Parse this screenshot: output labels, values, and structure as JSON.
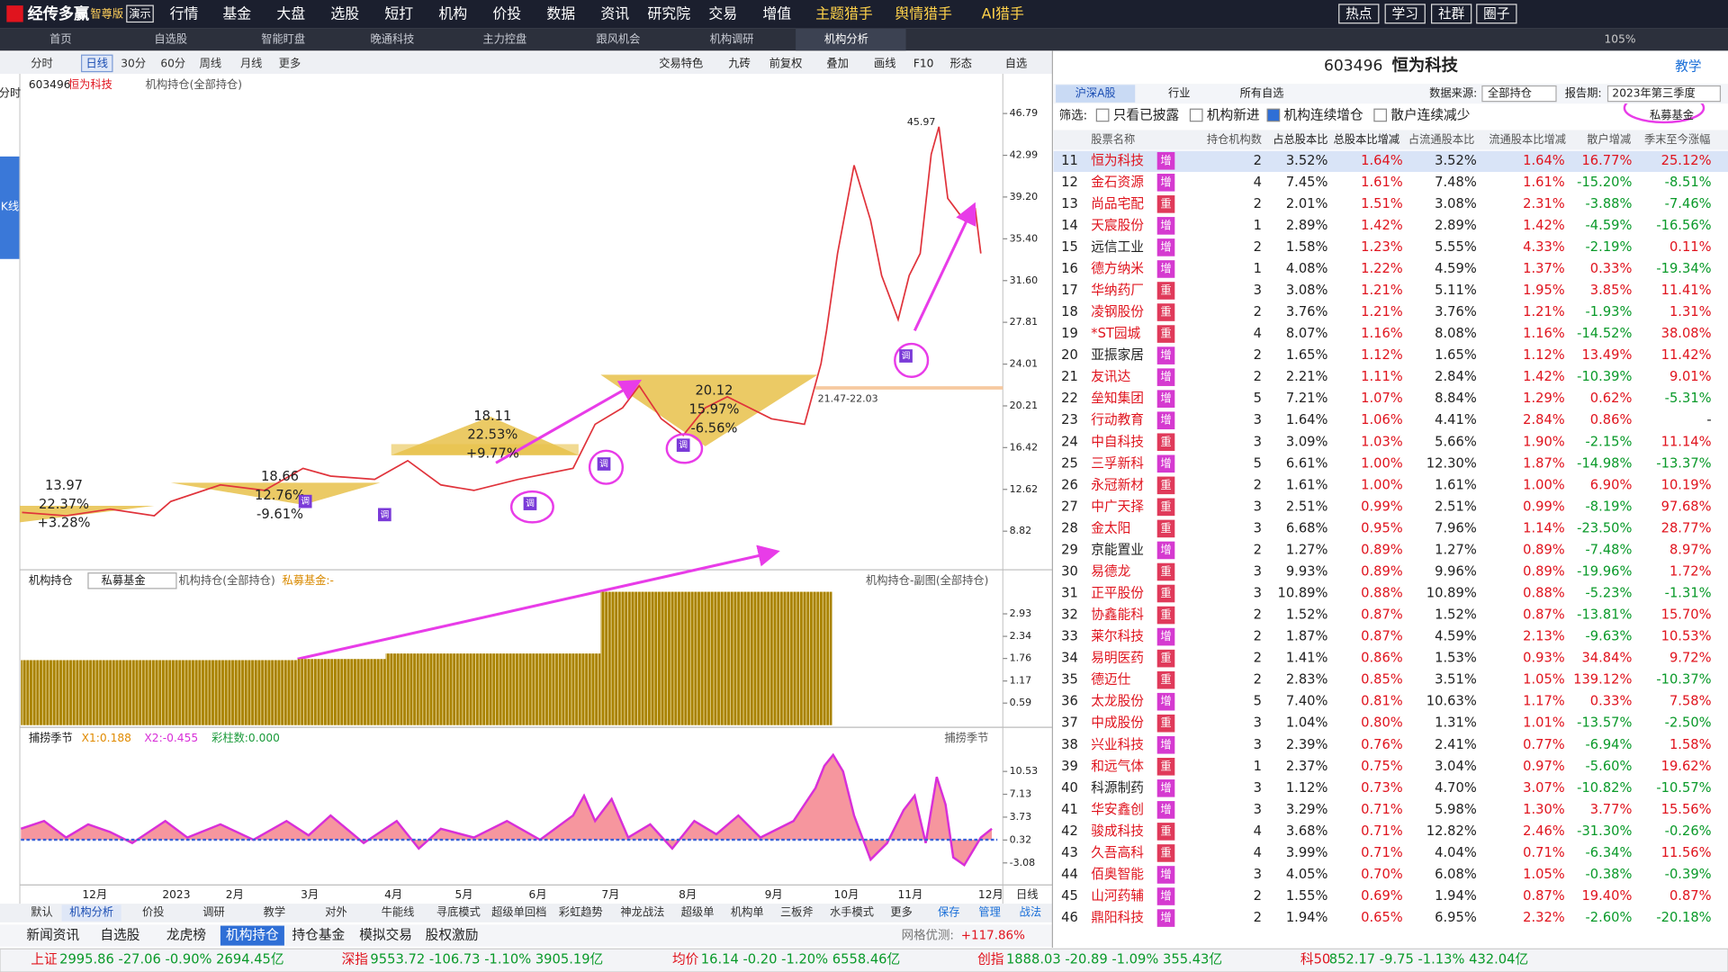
{
  "top_bar": {
    "logo": "经传多赢",
    "edition": "智尊版",
    "demo": "演示",
    "menu": [
      "行情",
      "基金",
      "大盘",
      "选股",
      "短打",
      "机构",
      "价投",
      "数据",
      "资讯",
      "研究院",
      "交易",
      "增值",
      "主题猎手",
      "舆情猎手",
      "AI猎手"
    ],
    "buttons": [
      "热点",
      "学习",
      "社群",
      "圈子"
    ]
  },
  "tabs": {
    "items": [
      "首页",
      "自选股",
      "智能盯盘",
      "晚通科技",
      "主力控盘",
      "跟风机会",
      "机构调研",
      "机构分析"
    ],
    "zoom": "105%"
  },
  "side_tabs": [
    "分时",
    "K线"
  ],
  "toolbar": {
    "periods": [
      "分时",
      "日线",
      "30分",
      "60分",
      "周线",
      "月线",
      "更多"
    ],
    "tools": [
      "交易特色",
      "九砖",
      "前复权",
      "叠加",
      "画线",
      "F10",
      "形态",
      "自选"
    ]
  },
  "main_chart": {
    "code": "603496",
    "name": "恒为科技",
    "indicator": "机构持仓(全部持仓)",
    "price_ticks": [
      46.79,
      42.99,
      {
        "value": 39.2,
        "label": "39.20"
      },
      {
        "value": 35.4,
        "label": "35.40"
      },
      {
        "value": 31.6,
        "label": "31.60"
      },
      27.81,
      24.01,
      20.21,
      16.42,
      12.62,
      8.82
    ],
    "high_label": "45.97",
    "range_label": "21.47-22.03",
    "zones": [
      [
        "13.97",
        "22.37%",
        "+3.28%"
      ],
      [
        "18.66",
        "12.76%",
        "-9.61%"
      ],
      [
        "18.11",
        "22.53%",
        "+9.77%"
      ],
      [
        "20.12",
        "15.97%",
        "-6.56%"
      ]
    ],
    "marker": "调"
  },
  "holding_chart": {
    "title": "机构持仓",
    "selector": "私募基金",
    "indicator": "机构持仓(全部持仓)",
    "legend": "私募基金:-",
    "right_title": "机构持仓-副图(全部持仓)",
    "ticks": [
      2.93,
      2.34,
      1.76,
      1.17,
      0.59
    ]
  },
  "season_chart": {
    "title": "捕捞季节",
    "x1": "X1:0.188",
    "x2": "X2:-0.455",
    "bars": "彩柱数:0.000",
    "ticks": [
      10.53,
      7.13,
      3.73,
      0.32,
      -3.08
    ]
  },
  "months": [
    "12月",
    "2023",
    "2月",
    "3月",
    "4月",
    "5月",
    "6月",
    "7月",
    "8月",
    "9月",
    "10月",
    "11月",
    "12月"
  ],
  "period_label": "日线",
  "template_tabs": [
    "默认",
    "机构分析",
    "价投",
    "调研",
    "教学",
    "对外",
    "牛能线",
    "寻底模式",
    "超级单回档",
    "彩虹趋势",
    "神龙战法",
    "超级单",
    "机构单",
    "三板斧",
    "水手模式",
    "更多",
    "保存",
    "管理",
    "战法"
  ],
  "info_tabs": [
    "新闻资讯",
    "自选股",
    "龙虎榜",
    "机构持仓",
    "持仓基金",
    "模拟交易",
    "股权激励"
  ],
  "grid_test": {
    "label": "网格优测:",
    "value": "+117.86%"
  },
  "status": [
    {
      "name": "上证",
      "values": "2995.86  -27.06  -0.90%  2694.45亿"
    },
    {
      "name": "深指",
      "values": "9553.72  -106.73  -1.10%  3905.19亿"
    },
    {
      "name": "均价",
      "values": "16.14  -0.20  -1.20%  6558.46亿"
    },
    {
      "name": "创指",
      "values": "1888.03  -20.89  -1.09%  355.43亿"
    },
    {
      "name": "科50",
      "values": "852.17  -9.75  -1.13%  432.04亿"
    }
  ],
  "panel": {
    "code": "603496",
    "name": "恒为科技",
    "help": "教学",
    "market_tabs": [
      "沪深A股",
      "行业",
      "所有自选"
    ],
    "source_label": "数据来源:",
    "source": "全部持仓",
    "period_label": "报告期:",
    "period": "2023年第三季度",
    "filter_label": "筛选:",
    "filters": [
      {
        "label": "只看已披露",
        "checked": false
      },
      {
        "label": "机构新进",
        "checked": false
      },
      {
        "label": "机构连续增仓",
        "checked": true
      },
      {
        "label": "散户连续减少",
        "checked": false
      }
    ],
    "fund_type": "私募基金",
    "columns": [
      "股票名称",
      "持仓机构数",
      "占总股本比",
      "总股本比增减",
      "占流通股本比",
      "流通股本比增减",
      "散户增减",
      "季末至今涨幅"
    ],
    "rows": [
      {
        "no": "11",
        "name": "恒为科技",
        "name_color": "#e0141e",
        "tag": "增",
        "cells": [
          "2",
          "3.52%",
          "1.64%",
          "3.52%",
          "1.64%",
          "16.77%",
          "25.12%"
        ]
      },
      {
        "no": "12",
        "name": "金石资源",
        "name_color": "#e0141e",
        "tag": "增",
        "cells": [
          "4",
          "7.45%",
          "1.61%",
          "7.48%",
          "1.61%",
          "-15.20%",
          "-8.51%"
        ]
      },
      {
        "no": "13",
        "name": "尚品宅配",
        "name_color": "#e0141e",
        "tag": "重",
        "cells": [
          "2",
          "2.01%",
          "1.51%",
          "3.08%",
          "2.31%",
          "-3.88%",
          "-7.46%"
        ]
      },
      {
        "no": "14",
        "name": "天宸股份",
        "name_color": "#e0141e",
        "tag": "增",
        "cells": [
          "1",
          "2.89%",
          "1.42%",
          "2.89%",
          "1.42%",
          "-4.59%",
          "-16.56%"
        ]
      },
      {
        "no": "15",
        "name": "远信工业",
        "name_color": "#222222",
        "tag": "增",
        "cells": [
          "2",
          "1.58%",
          "1.23%",
          "5.55%",
          "4.33%",
          "-2.19%",
          "0.11%"
        ]
      },
      {
        "no": "16",
        "name": "德方纳米",
        "name_color": "#e0141e",
        "tag": "增",
        "cells": [
          "1",
          "4.08%",
          "1.22%",
          "4.59%",
          "1.37%",
          "0.33%",
          "-19.34%"
        ]
      },
      {
        "no": "17",
        "name": "华纳药厂",
        "name_color": "#e0141e",
        "tag": "重",
        "cells": [
          "3",
          "3.08%",
          "1.21%",
          "5.11%",
          "1.95%",
          "3.85%",
          "11.41%"
        ]
      },
      {
        "no": "18",
        "name": "凌钢股份",
        "name_color": "#e0141e",
        "tag": "重",
        "cells": [
          "2",
          "3.76%",
          "1.21%",
          "3.76%",
          "1.21%",
          "-1.93%",
          "1.31%"
        ]
      },
      {
        "no": "19",
        "name": "*ST园城",
        "name_color": "#e0141e",
        "tag": "重",
        "cells": [
          "4",
          "8.07%",
          "1.16%",
          "8.08%",
          "1.16%",
          "-14.52%",
          "38.08%"
        ]
      },
      {
        "no": "20",
        "name": "亚振家居",
        "name_color": "#222222",
        "tag": "增",
        "cells": [
          "2",
          "1.65%",
          "1.12%",
          "1.65%",
          "1.12%",
          "13.49%",
          "11.42%"
        ]
      },
      {
        "no": "21",
        "name": "友讯达",
        "name_color": "#e0141e",
        "tag": "增",
        "cells": [
          "2",
          "2.21%",
          "1.11%",
          "2.84%",
          "1.42%",
          "-10.39%",
          "9.01%"
        ]
      },
      {
        "no": "22",
        "name": "垒知集团",
        "name_color": "#e0141e",
        "tag": "增",
        "cells": [
          "5",
          "7.21%",
          "1.07%",
          "8.84%",
          "1.29%",
          "0.62%",
          "-5.31%"
        ]
      },
      {
        "no": "23",
        "name": "行动教育",
        "name_color": "#e0141e",
        "tag": "增",
        "cells": [
          "3",
          "1.64%",
          "1.06%",
          "4.41%",
          "2.84%",
          "0.86%",
          "-"
        ]
      },
      {
        "no": "24",
        "name": "中自科技",
        "name_color": "#e0141e",
        "tag": "重",
        "cells": [
          "3",
          "3.09%",
          "1.03%",
          "5.66%",
          "1.90%",
          "-2.15%",
          "11.14%"
        ]
      },
      {
        "no": "25",
        "name": "三孚新科",
        "name_color": "#e0141e",
        "tag": "增",
        "cells": [
          "5",
          "6.61%",
          "1.00%",
          "12.30%",
          "1.87%",
          "-14.98%",
          "-13.37%"
        ]
      },
      {
        "no": "26",
        "name": "永冠新材",
        "name_color": "#e0141e",
        "tag": "重",
        "cells": [
          "2",
          "1.61%",
          "1.00%",
          "1.61%",
          "1.00%",
          "6.90%",
          "10.19%"
        ]
      },
      {
        "no": "27",
        "name": "中广天择",
        "name_color": "#e0141e",
        "tag": "重",
        "cells": [
          "3",
          "2.51%",
          "0.99%",
          "2.51%",
          "0.99%",
          "-8.19%",
          "97.68%"
        ]
      },
      {
        "no": "28",
        "name": "金太阳",
        "name_color": "#e0141e",
        "tag": "重",
        "cells": [
          "3",
          "6.68%",
          "0.95%",
          "7.96%",
          "1.14%",
          "-23.50%",
          "28.77%"
        ]
      },
      {
        "no": "29",
        "name": "京能置业",
        "name_color": "#222222",
        "tag": "增",
        "cells": [
          "2",
          "1.27%",
          "0.89%",
          "1.27%",
          "0.89%",
          "-7.48%",
          "8.97%"
        ]
      },
      {
        "no": "30",
        "name": "易德龙",
        "name_color": "#e0141e",
        "tag": "重",
        "cells": [
          "3",
          "9.93%",
          "0.89%",
          "9.96%",
          "0.89%",
          "-19.96%",
          "1.72%"
        ]
      },
      {
        "no": "31",
        "name": "正平股份",
        "name_color": "#e0141e",
        "tag": "重",
        "cells": [
          "3",
          "10.89%",
          "0.88%",
          "10.89%",
          "0.88%",
          "-5.23%",
          "-1.31%"
        ]
      },
      {
        "no": "32",
        "name": "协鑫能科",
        "name_color": "#e0141e",
        "tag": "重",
        "cells": [
          "2",
          "1.52%",
          "0.87%",
          "1.52%",
          "0.87%",
          "-13.81%",
          "15.70%"
        ]
      },
      {
        "no": "33",
        "name": "莱尔科技",
        "name_color": "#e0141e",
        "tag": "增",
        "cells": [
          "2",
          "1.87%",
          "0.87%",
          "4.59%",
          "2.13%",
          "-9.63%",
          "10.53%"
        ]
      },
      {
        "no": "34",
        "name": "易明医药",
        "name_color": "#e0141e",
        "tag": "重",
        "cells": [
          "2",
          "1.41%",
          "0.86%",
          "1.53%",
          "0.93%",
          "34.84%",
          "9.72%"
        ]
      },
      {
        "no": "35",
        "name": "德迈仕",
        "name_color": "#e0141e",
        "tag": "重",
        "cells": [
          "2",
          "2.83%",
          "0.85%",
          "3.51%",
          "1.05%",
          "139.12%",
          "-10.37%"
        ]
      },
      {
        "no": "36",
        "name": "太龙股份",
        "name_color": "#e0141e",
        "tag": "增",
        "cells": [
          "5",
          "7.40%",
          "0.81%",
          "10.63%",
          "1.17%",
          "0.33%",
          "7.58%"
        ]
      },
      {
        "no": "37",
        "name": "中成股份",
        "name_color": "#e0141e",
        "tag": "重",
        "cells": [
          "3",
          "1.04%",
          "0.80%",
          "1.31%",
          "1.01%",
          "-13.57%",
          "-2.50%"
        ]
      },
      {
        "no": "38",
        "name": "兴业科技",
        "name_color": "#e0141e",
        "tag": "增",
        "cells": [
          "3",
          "2.39%",
          "0.76%",
          "2.41%",
          "0.77%",
          "-6.94%",
          "1.58%"
        ]
      },
      {
        "no": "39",
        "name": "和远气体",
        "name_color": "#e0141e",
        "tag": "重",
        "cells": [
          "1",
          "2.37%",
          "0.75%",
          "3.04%",
          "0.97%",
          "-5.60%",
          "19.62%"
        ]
      },
      {
        "no": "40",
        "name": "科源制药",
        "name_color": "#222222",
        "tag": "增",
        "cells": [
          "3",
          "1.12%",
          "0.73%",
          "4.70%",
          "3.07%",
          "-10.82%",
          "-10.57%"
        ]
      },
      {
        "no": "41",
        "name": "华安鑫创",
        "name_color": "#e0141e",
        "tag": "增",
        "cells": [
          "3",
          "3.29%",
          "0.71%",
          "5.98%",
          "1.30%",
          "3.77%",
          "15.56%"
        ]
      },
      {
        "no": "42",
        "name": "骏成科技",
        "name_color": "#e0141e",
        "tag": "重",
        "cells": [
          "4",
          "3.68%",
          "0.71%",
          "12.82%",
          "2.46%",
          "-31.30%",
          "-0.26%"
        ]
      },
      {
        "no": "43",
        "name": "久吾高科",
        "name_color": "#e0141e",
        "tag": "重",
        "cells": [
          "4",
          "3.99%",
          "0.71%",
          "4.04%",
          "0.71%",
          "-6.34%",
          "11.56%"
        ]
      },
      {
        "no": "44",
        "name": "佰奥智能",
        "name_color": "#e0141e",
        "tag": "增",
        "cells": [
          "3",
          "4.05%",
          "0.70%",
          "6.08%",
          "1.05%",
          "-0.38%",
          "-0.39%"
        ]
      },
      {
        "no": "45",
        "name": "山河药辅",
        "name_color": "#e0141e",
        "tag": "增",
        "cells": [
          "2",
          "1.55%",
          "0.69%",
          "1.94%",
          "0.87%",
          "19.40%",
          "0.87%"
        ]
      },
      {
        "no": "46",
        "name": "鼎阳科技",
        "name_color": "#e0141e",
        "tag": "增",
        "cells": [
          "2",
          "1.94%",
          "0.65%",
          "6.95%",
          "2.32%",
          "-2.60%",
          "-20.18%"
        ]
      }
    ]
  }
}
